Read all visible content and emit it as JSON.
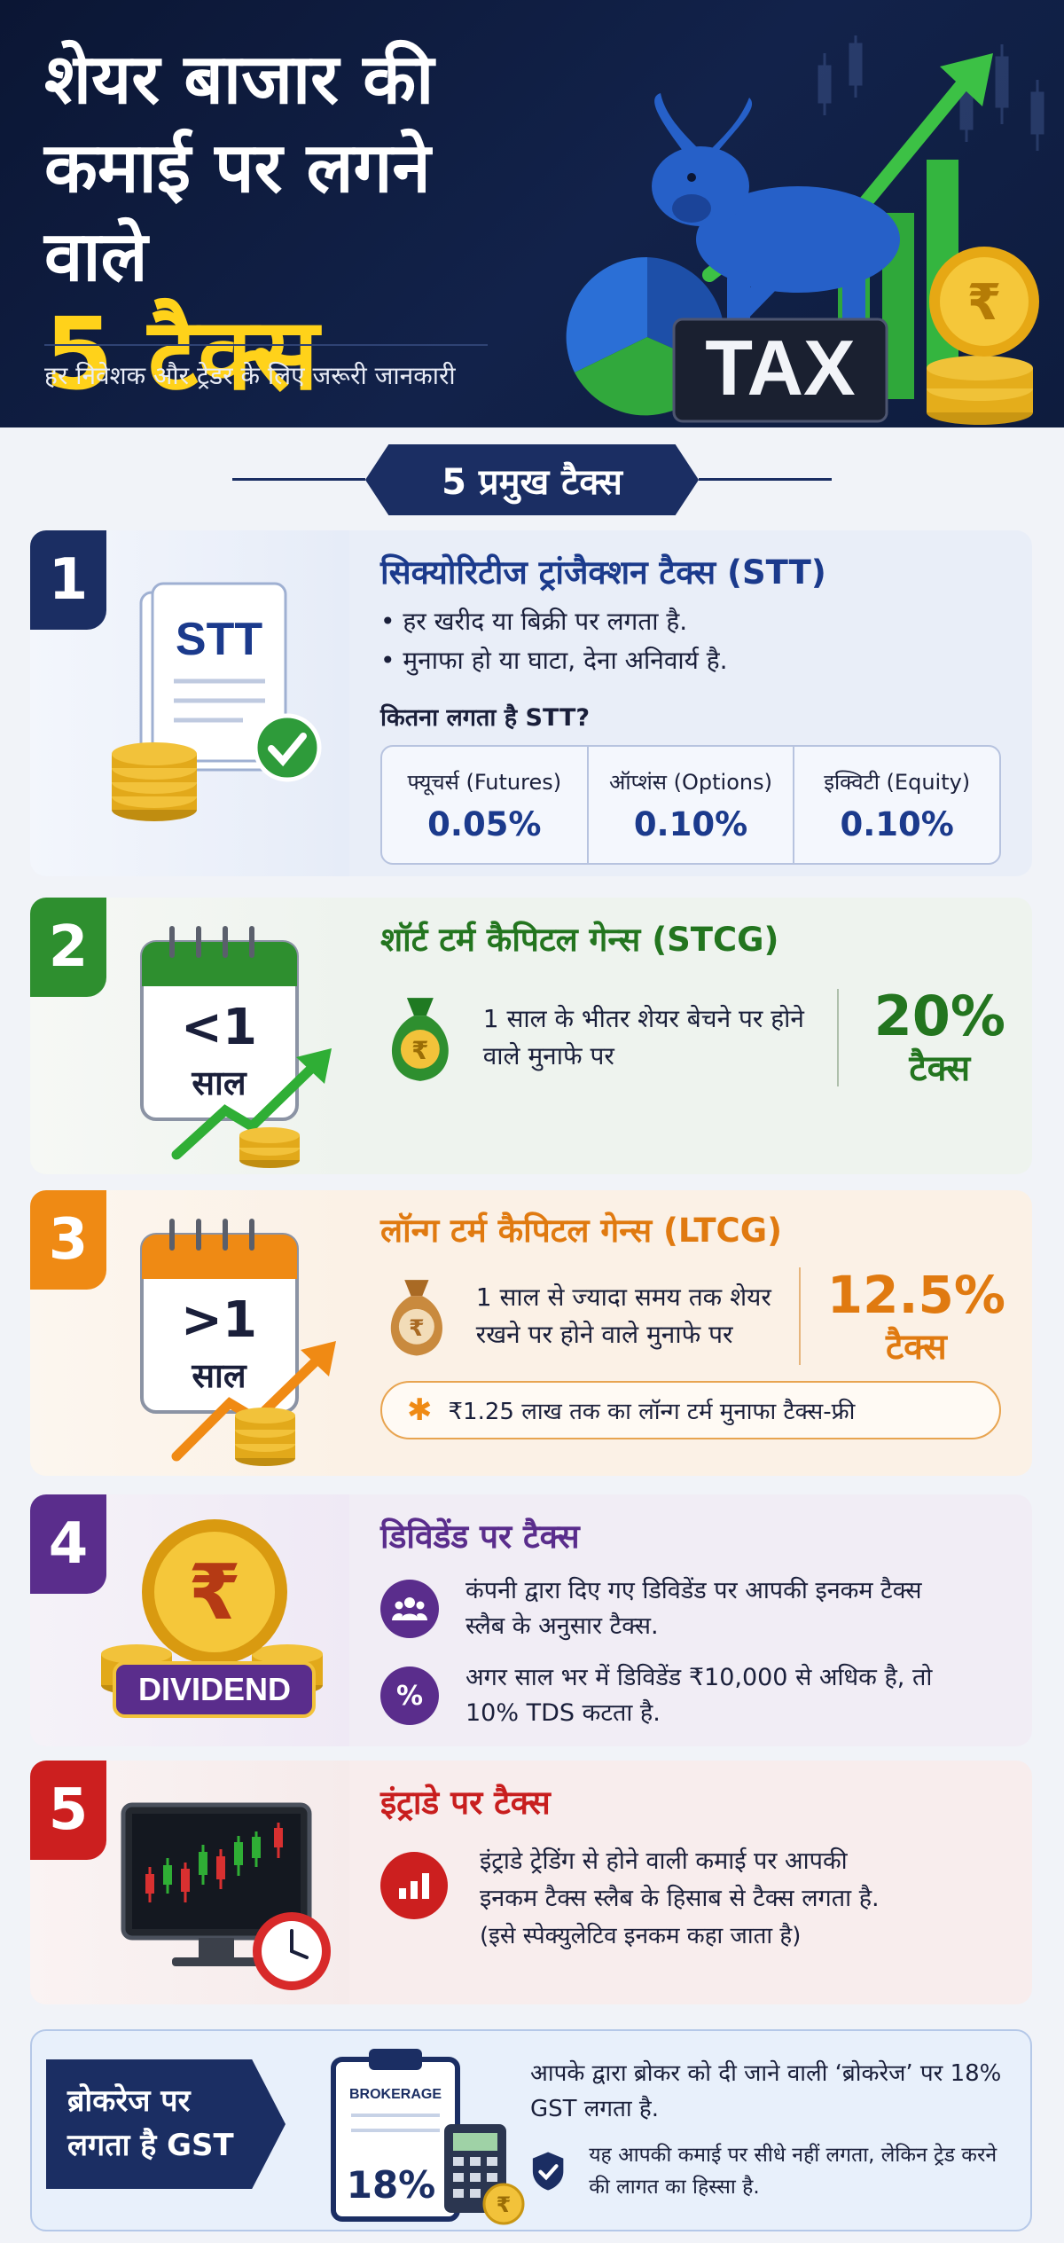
{
  "header": {
    "title_line1": "शेयर बाजार की",
    "title_line2": "कमाई पर लगने वाले",
    "title_line3": "5 टैक्स",
    "subtitle": "हर निवेशक और ट्रेडर के लिए जरूरी जानकारी",
    "tax_label": "TAX",
    "rupee": "₹"
  },
  "section_title": "5 प्रमुख टैक्स",
  "taxes": [
    {
      "number": "1",
      "title": "सिक्योरिटीज ट्रांजैक्शन टैक्स (STT)",
      "icon_text": "STT",
      "bullets": [
        "हर खरीद या बिक्री पर लगता है.",
        "मुनाफा हो या घाटा, देना अनिवार्य है."
      ],
      "rate_question": "कितना लगता है STT?",
      "rates": [
        {
          "label": "फ्यूचर्स (Futures)",
          "value": "0.05%"
        },
        {
          "label": "ऑप्शंस (Options)",
          "value": "0.10%"
        },
        {
          "label": "इक्विटी (Equity)",
          "value": "0.10%"
        }
      ]
    },
    {
      "number": "2",
      "title": "शॉर्ट टर्म कैपिटल गेन्स (STCG)",
      "calendar_top": "<1",
      "calendar_bottom": "साल",
      "description": "1 साल के भीतर शेयर बेचने पर होने वाले मुनाफे पर",
      "rate": "20%",
      "rate_suffix": "टैक्स"
    },
    {
      "number": "3",
      "title": "लॉन्ग टर्म कैपिटल गेन्स (LTCG)",
      "calendar_top": ">1",
      "calendar_bottom": "साल",
      "description": "1 साल से ज्यादा समय तक शेयर रखने पर होने वाले मुनाफे पर",
      "rate": "12.5%",
      "rate_suffix": "टैक्स",
      "note": "₹1.25 लाख तक का लॉन्ग टर्म मुनाफा टैक्स-फ्री"
    },
    {
      "number": "4",
      "title": "डिविडेंड पर टैक्स",
      "icon_text": "DIVIDEND",
      "point1": "कंपनी द्वारा दिए गए डिविडेंड पर आपकी इनकम टैक्स स्लैब के अनुसार टैक्स.",
      "point2": "अगर साल भर में डिविडेंड ₹10,000 से अधिक है, तो 10% TDS कटता है.",
      "percent_icon": "%"
    },
    {
      "number": "5",
      "title": "इंट्राडे पर टैक्स",
      "description": "इंट्राडे ट्रेडिंग से होने वाली कमाई पर आपकी इनकम टैक्स स्लैब के हिसाब से टैक्स लगता है.",
      "description_note": "(इसे स्पेक्युलेटिव इनकम कहा जाता है)"
    }
  ],
  "gst": {
    "label_line1": "ब्रोकरेज पर",
    "label_line2": "लगता है GST",
    "board_title": "BROKERAGE",
    "board_value": "18%",
    "text1": "आपके द्वारा ब्रोकर को दी जाने वाली ‘ब्रोकरेज’ पर 18% GST लगता है.",
    "text2": "यह आपकी कमाई पर सीधे नहीं लगता, लेकिन ट्रेड करने की लागत का हिस्सा है."
  },
  "colors": {
    "navy": "#1b2e63",
    "green": "#2e8f2f",
    "orange": "#ef8a14",
    "purple": "#5a2d8c",
    "red": "#cc1f1f",
    "yellow": "#ffd21a"
  }
}
